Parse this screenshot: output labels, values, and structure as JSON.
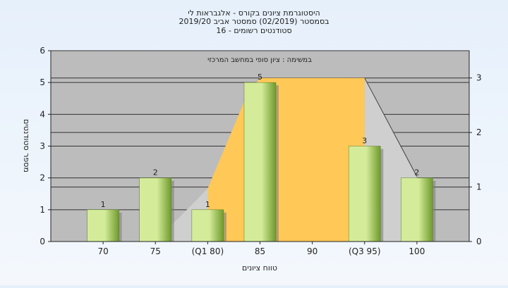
{
  "chart_data": {
    "type": "bar",
    "title_lines": [
      "היסטוגרמת ציונים בקורס - אלגבראות לי",
      "בסמסטר  (02/2019)  סמסטר אביב 2019/20",
      "סטודנטים רשומים - 16"
    ],
    "categories": [
      "70",
      "75",
      "(Q1 80)",
      "85",
      "90",
      "(Q3 95)",
      "100"
    ],
    "values": [
      1,
      2,
      1,
      5,
      0,
      3,
      2
    ],
    "xlabel": "טווח ציונים",
    "ylabel": "מספר סטודנטים",
    "ylim": [
      0,
      6
    ],
    "yticks": [
      0,
      1,
      2,
      3,
      4,
      5,
      6
    ],
    "y2lim": [
      0,
      3.5
    ],
    "y2ticks": [
      0,
      1,
      2,
      3
    ],
    "overlay": {
      "label": "במשימה : ציון סופי במחשב המרכזי",
      "q1_category": "(Q1 80)",
      "q3_category": "(Q3 95)",
      "box_top_y2": 3,
      "color": "#ffc857"
    },
    "grid": true,
    "legend": "none",
    "colors": {
      "plot_bg": "#bcbcbc",
      "bar_light": "#d4ec9a",
      "bar_dark": "#6f9a2c",
      "overlay_fill": "#ffc857",
      "wedge_fill": "#cfcfcf"
    }
  }
}
